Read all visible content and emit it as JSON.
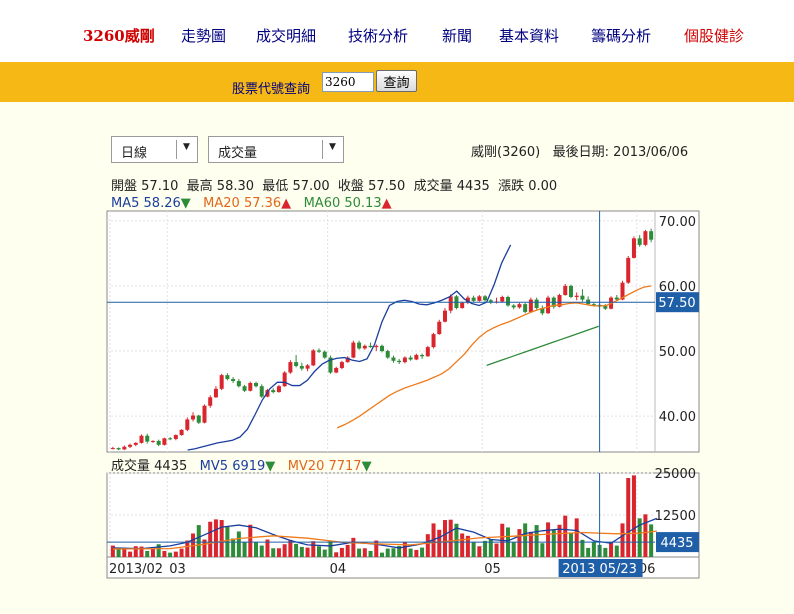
{
  "nav": {
    "stock": "3260威剛",
    "items": [
      "走勢圖",
      "成交明細",
      "技術分析",
      "新聞",
      "基本資料",
      "籌碼分析"
    ],
    "health": "個股健診"
  },
  "search": {
    "label": "股票代號查詢",
    "value": "3260",
    "button": "查詢"
  },
  "controls": {
    "period": "日線",
    "indicator": "成交量"
  },
  "header": {
    "stock_name": "威剛(3260)",
    "last_date_label": "最後日期:",
    "last_date": "2013/06/06"
  },
  "ohlc": {
    "open_label": "開盤",
    "open": "57.10",
    "high_label": "最高",
    "high": "58.30",
    "low_label": "最低",
    "low": "57.00",
    "close_label": "收盤",
    "close": "57.50",
    "volume_label": "成交量",
    "volume": "4435",
    "change_label": "漲跌",
    "change": "0.00"
  },
  "ma": {
    "ma5_label": "MA5",
    "ma5": "58.26",
    "ma5_dir": "▼",
    "ma20_label": "MA20",
    "ma20": "57.36",
    "ma20_dir": "▲",
    "ma60_label": "MA60",
    "ma60": "50.13",
    "ma60_dir": "▲"
  },
  "vol_legend": {
    "vol_label": "成交量",
    "vol": "4435",
    "mv5_label": "MV5",
    "mv5": "6919",
    "mv5_dir": "▼",
    "mv20_label": "MV20",
    "mv20": "7717",
    "mv20_dir": "▼"
  },
  "colors": {
    "up": "#d9262e",
    "down": "#2e8b3a",
    "ma5": "#1a3e9e",
    "ma20": "#ef7a1a",
    "ma60": "#2e8b3a",
    "crosshair": "#1f5fa8",
    "label_bg": "#1f5fa8",
    "nav_link": "#000080",
    "nav_highlight": "#d00000",
    "search_bar": "#f6b814"
  },
  "chart_data": {
    "type": "candlestick",
    "price_ticks": [
      "70.00",
      "60.00",
      "50.00",
      "40.00"
    ],
    "price_range": [
      34.5,
      71.5
    ],
    "volume_ticks": [
      "25000",
      "12500"
    ],
    "volume_range": [
      0,
      25000
    ],
    "x_labels": [
      "2013/02",
      "03",
      "04",
      "05",
      "06"
    ],
    "x_label_index": [
      0,
      10,
      38,
      65,
      92
    ],
    "crosshair": {
      "index": 85,
      "price": "57.50",
      "volume": "4435",
      "date": "2013 05/23"
    },
    "candles": [
      [
        35.0,
        35.3,
        34.9,
        35.1,
        3400
      ],
      [
        35.1,
        35.2,
        34.8,
        34.9,
        2300
      ],
      [
        34.9,
        35.5,
        34.8,
        35.3,
        2600
      ],
      [
        35.3,
        35.8,
        35.1,
        35.6,
        1600
      ],
      [
        35.6,
        36.0,
        35.4,
        35.9,
        3200
      ],
      [
        35.9,
        37.2,
        35.8,
        37.0,
        3100
      ],
      [
        37.0,
        37.3,
        35.8,
        36.1,
        1800
      ],
      [
        36.1,
        36.3,
        35.9,
        36.2,
        2400
      ],
      [
        36.2,
        36.4,
        35.4,
        35.6,
        3800
      ],
      [
        35.6,
        36.7,
        35.5,
        36.6,
        1800
      ],
      [
        36.6,
        36.8,
        36.3,
        36.5,
        1300
      ],
      [
        36.5,
        37.2,
        36.3,
        37.1,
        1600
      ],
      [
        37.1,
        38.0,
        37.0,
        37.9,
        2500
      ],
      [
        37.9,
        39.8,
        37.7,
        39.5,
        4900
      ],
      [
        39.5,
        40.6,
        39.2,
        40.1,
        7000
      ],
      [
        40.1,
        40.2,
        38.8,
        39.0,
        9500
      ],
      [
        39.0,
        41.8,
        38.9,
        41.6,
        5200
      ],
      [
        41.6,
        43.2,
        41.3,
        42.9,
        10500
      ],
      [
        42.9,
        44.6,
        42.8,
        44.2,
        11200
      ],
      [
        44.2,
        46.5,
        44.0,
        46.3,
        11000
      ],
      [
        46.3,
        46.6,
        45.5,
        45.7,
        9000
      ],
      [
        45.7,
        46.0,
        45.1,
        45.4,
        5500
      ],
      [
        45.4,
        45.7,
        44.4,
        44.6,
        7600
      ],
      [
        44.6,
        44.8,
        43.7,
        43.9,
        4500
      ],
      [
        43.9,
        45.3,
        43.8,
        45.1,
        9600
      ],
      [
        45.1,
        45.3,
        44.4,
        44.6,
        4400
      ],
      [
        44.6,
        44.9,
        42.8,
        43.0,
        3400
      ],
      [
        43.0,
        44.2,
        42.9,
        44.0,
        5200
      ],
      [
        44.0,
        44.3,
        43.5,
        43.7,
        2600
      ],
      [
        43.7,
        44.8,
        43.6,
        44.6,
        2600
      ],
      [
        44.6,
        46.9,
        44.5,
        46.7,
        3800
      ],
      [
        46.7,
        48.6,
        46.5,
        48.3,
        5100
      ],
      [
        48.3,
        49.4,
        47.5,
        47.7,
        3900
      ],
      [
        47.7,
        48.2,
        47.0,
        47.3,
        3000
      ],
      [
        47.3,
        48.0,
        46.9,
        47.8,
        2800
      ],
      [
        47.8,
        50.3,
        47.7,
        50.1,
        4700
      ],
      [
        50.1,
        50.4,
        49.7,
        49.9,
        3200
      ],
      [
        49.9,
        50.1,
        48.8,
        49.0,
        2200
      ],
      [
        49.0,
        49.3,
        46.5,
        46.7,
        4800
      ],
      [
        46.7,
        47.6,
        46.6,
        47.4,
        1400
      ],
      [
        47.4,
        48.5,
        47.2,
        48.3,
        2700
      ],
      [
        48.3,
        49.2,
        48.2,
        49.0,
        3600
      ],
      [
        49.0,
        51.6,
        48.9,
        51.3,
        5700
      ],
      [
        51.3,
        51.6,
        50.2,
        50.4,
        2500
      ],
      [
        50.4,
        51.0,
        50.2,
        50.8,
        2600
      ],
      [
        50.8,
        51.3,
        50.5,
        50.6,
        1800
      ],
      [
        50.6,
        51.0,
        50.0,
        50.8,
        4900
      ],
      [
        50.8,
        51.0,
        49.8,
        50.0,
        1300
      ],
      [
        50.0,
        50.2,
        48.8,
        49.0,
        2500
      ],
      [
        49.0,
        49.3,
        48.2,
        48.5,
        2600
      ],
      [
        48.5,
        48.8,
        48.0,
        48.3,
        3300
      ],
      [
        48.3,
        49.2,
        48.1,
        49.0,
        4400
      ],
      [
        49.0,
        49.3,
        48.5,
        48.7,
        2500
      ],
      [
        48.7,
        49.6,
        48.6,
        49.4,
        2100
      ],
      [
        49.4,
        49.6,
        48.8,
        49.2,
        2800
      ],
      [
        49.2,
        50.8,
        49.1,
        50.6,
        6800
      ],
      [
        50.6,
        52.8,
        50.4,
        52.6,
        10000
      ],
      [
        52.6,
        54.8,
        52.5,
        54.5,
        8100
      ],
      [
        54.5,
        56.6,
        54.4,
        56.2,
        11000
      ],
      [
        56.2,
        58.7,
        55.8,
        58.4,
        11100
      ],
      [
        58.4,
        58.6,
        56.4,
        56.6,
        9900
      ],
      [
        56.6,
        57.6,
        56.5,
        57.4,
        7000
      ],
      [
        57.4,
        58.5,
        57.2,
        58.2,
        6300
      ],
      [
        58.2,
        58.5,
        57.5,
        57.7,
        4500
      ],
      [
        57.7,
        58.6,
        57.6,
        58.4,
        3200
      ],
      [
        58.4,
        58.6,
        57.6,
        57.8,
        4800
      ],
      [
        57.8,
        58.0,
        57.2,
        57.5,
        5300
      ],
      [
        57.5,
        58.2,
        57.3,
        57.6,
        4000
      ],
      [
        57.6,
        58.5,
        57.5,
        58.3,
        9900
      ],
      [
        58.3,
        58.5,
        56.8,
        57.0,
        8800
      ],
      [
        57.0,
        57.2,
        56.4,
        56.7,
        4300
      ],
      [
        56.7,
        57.4,
        56.5,
        57.2,
        8300
      ],
      [
        57.2,
        57.4,
        55.8,
        56.0,
        10000
      ],
      [
        56.0,
        58.2,
        55.9,
        57.9,
        7500
      ],
      [
        57.9,
        58.2,
        56.4,
        56.6,
        9500
      ],
      [
        56.6,
        57.0,
        55.5,
        55.8,
        4100
      ],
      [
        55.8,
        58.5,
        55.7,
        58.2,
        10300
      ],
      [
        58.2,
        58.4,
        56.5,
        56.8,
        8100
      ],
      [
        56.8,
        58.8,
        56.7,
        58.6,
        9600
      ],
      [
        58.6,
        60.3,
        58.5,
        60.0,
        12300
      ],
      [
        60.0,
        60.2,
        58.1,
        58.3,
        7000
      ],
      [
        58.3,
        59.0,
        57.8,
        58.5,
        11500
      ],
      [
        58.5,
        59.5,
        57.6,
        57.9,
        5100
      ],
      [
        57.9,
        58.4,
        57.1,
        57.2,
        2700
      ],
      [
        57.2,
        57.5,
        56.8,
        57.1,
        4500
      ],
      [
        57.1,
        57.5,
        56.6,
        56.9,
        3600
      ],
      [
        56.9,
        57.2,
        56.3,
        56.5,
        2700
      ],
      [
        56.5,
        58.4,
        56.4,
        58.2,
        4500
      ],
      [
        58.2,
        58.6,
        57.7,
        57.9,
        3400
      ],
      [
        57.9,
        60.8,
        57.8,
        60.5,
        10000
      ],
      [
        60.5,
        64.6,
        60.3,
        64.3,
        23500
      ],
      [
        64.3,
        67.6,
        64.2,
        67.3,
        24300
      ],
      [
        67.3,
        67.8,
        66.0,
        66.3,
        11500
      ],
      [
        66.3,
        68.6,
        66.1,
        68.4,
        12700
      ],
      [
        68.4,
        68.8,
        66.7,
        67.1,
        9700
      ]
    ],
    "ma5": [
      [
        50,
        34.8
      ],
      [
        55,
        35.0
      ],
      [
        60,
        35.3
      ],
      [
        65,
        35.6
      ],
      [
        70,
        35.9
      ],
      [
        75,
        36.1
      ],
      [
        80,
        36.3
      ],
      [
        85,
        36.8
      ],
      [
        90,
        38.0
      ],
      [
        95,
        40.2
      ],
      [
        100,
        42.5
      ],
      [
        105,
        44.2
      ],
      [
        110,
        45.2
      ],
      [
        115,
        45.2
      ],
      [
        120,
        44.7
      ],
      [
        125,
        44.7
      ],
      [
        130,
        45.5
      ],
      [
        135,
        46.9
      ],
      [
        140,
        48.0
      ],
      [
        145,
        48.6
      ],
      [
        150,
        48.9
      ],
      [
        155,
        49.0
      ],
      [
        160,
        48.6
      ],
      [
        165,
        48.4
      ],
      [
        170,
        48.8
      ],
      [
        175,
        51.0
      ],
      [
        180,
        54.5
      ],
      [
        185,
        57.0
      ],
      [
        190,
        57.6
      ],
      [
        195,
        57.8
      ],
      [
        200,
        57.6
      ],
      [
        205,
        57.2
      ],
      [
        210,
        57.1
      ],
      [
        215,
        57.4
      ],
      [
        220,
        57.8
      ],
      [
        225,
        58.3
      ],
      [
        230,
        59.2
      ],
      [
        235,
        58.0
      ],
      [
        240,
        57.3
      ],
      [
        245,
        57.0
      ],
      [
        250,
        57.5
      ],
      [
        255,
        60.2
      ],
      [
        260,
        63.5
      ],
      [
        266,
        66.3
      ]
    ],
    "ma20": [
      [
        150,
        38.2
      ],
      [
        155,
        38.7
      ],
      [
        160,
        39.3
      ],
      [
        165,
        40.0
      ],
      [
        170,
        40.8
      ],
      [
        175,
        41.6
      ],
      [
        180,
        42.4
      ],
      [
        185,
        43.2
      ],
      [
        190,
        43.8
      ],
      [
        195,
        44.3
      ],
      [
        200,
        44.7
      ],
      [
        205,
        45.1
      ],
      [
        210,
        45.5
      ],
      [
        215,
        46.0
      ],
      [
        220,
        46.5
      ],
      [
        225,
        47.3
      ],
      [
        230,
        48.4
      ],
      [
        235,
        49.5
      ],
      [
        240,
        50.9
      ],
      [
        245,
        52.1
      ],
      [
        250,
        53.0
      ],
      [
        255,
        53.6
      ],
      [
        260,
        54.1
      ],
      [
        265,
        54.5
      ],
      [
        270,
        55.0
      ],
      [
        275,
        55.5
      ],
      [
        280,
        56.0
      ],
      [
        285,
        56.4
      ],
      [
        290,
        56.7
      ],
      [
        295,
        57.0
      ],
      [
        300,
        57.1
      ],
      [
        305,
        57.3
      ],
      [
        310,
        57.4
      ],
      [
        315,
        57.2
      ],
      [
        320,
        57.0
      ],
      [
        325,
        56.9
      ],
      [
        330,
        57.0
      ],
      [
        335,
        57.5
      ],
      [
        340,
        58.1
      ],
      [
        345,
        58.7
      ],
      [
        350,
        59.3
      ],
      [
        355,
        59.8
      ],
      [
        360,
        60.0
      ]
    ],
    "ma60": [
      [
        250,
        47.8
      ],
      [
        255,
        48.2
      ],
      [
        260,
        48.6
      ],
      [
        265,
        49.0
      ],
      [
        270,
        49.4
      ],
      [
        275,
        49.8
      ],
      [
        280,
        50.2
      ],
      [
        285,
        50.6
      ],
      [
        290,
        51.0
      ],
      [
        295,
        51.4
      ],
      [
        300,
        51.8
      ],
      [
        305,
        52.2
      ],
      [
        310,
        52.6
      ],
      [
        315,
        53.0
      ],
      [
        320,
        53.4
      ],
      [
        325,
        53.8
      ]
    ],
    "mv5": [
      [
        0,
        2700
      ],
      [
        5,
        2500
      ],
      [
        10,
        3300
      ],
      [
        13,
        4400
      ],
      [
        16,
        6600
      ],
      [
        19,
        8900
      ],
      [
        22,
        9500
      ],
      [
        25,
        8700
      ],
      [
        28,
        6700
      ],
      [
        31,
        4900
      ],
      [
        34,
        3600
      ],
      [
        38,
        3300
      ],
      [
        42,
        4400
      ],
      [
        46,
        3800
      ],
      [
        50,
        2700
      ],
      [
        54,
        3900
      ],
      [
        57,
        5800
      ],
      [
        60,
        8600
      ],
      [
        63,
        7400
      ],
      [
        66,
        5200
      ],
      [
        69,
        4800
      ],
      [
        72,
        7000
      ],
      [
        75,
        7800
      ],
      [
        78,
        8300
      ],
      [
        81,
        7900
      ],
      [
        84,
        4800
      ],
      [
        87,
        4100
      ],
      [
        90,
        7400
      ],
      [
        92,
        9500
      ],
      [
        95,
        11500
      ]
    ],
    "mv20": [
      [
        0,
        2400
      ],
      [
        10,
        2500
      ],
      [
        16,
        3800
      ],
      [
        22,
        5500
      ],
      [
        28,
        6300
      ],
      [
        34,
        5600
      ],
      [
        40,
        4400
      ],
      [
        46,
        3900
      ],
      [
        52,
        3600
      ],
      [
        58,
        4600
      ],
      [
        64,
        5700
      ],
      [
        70,
        6200
      ],
      [
        76,
        6800
      ],
      [
        82,
        7300
      ],
      [
        88,
        6900
      ],
      [
        92,
        7100
      ],
      [
        95,
        7700
      ]
    ]
  }
}
